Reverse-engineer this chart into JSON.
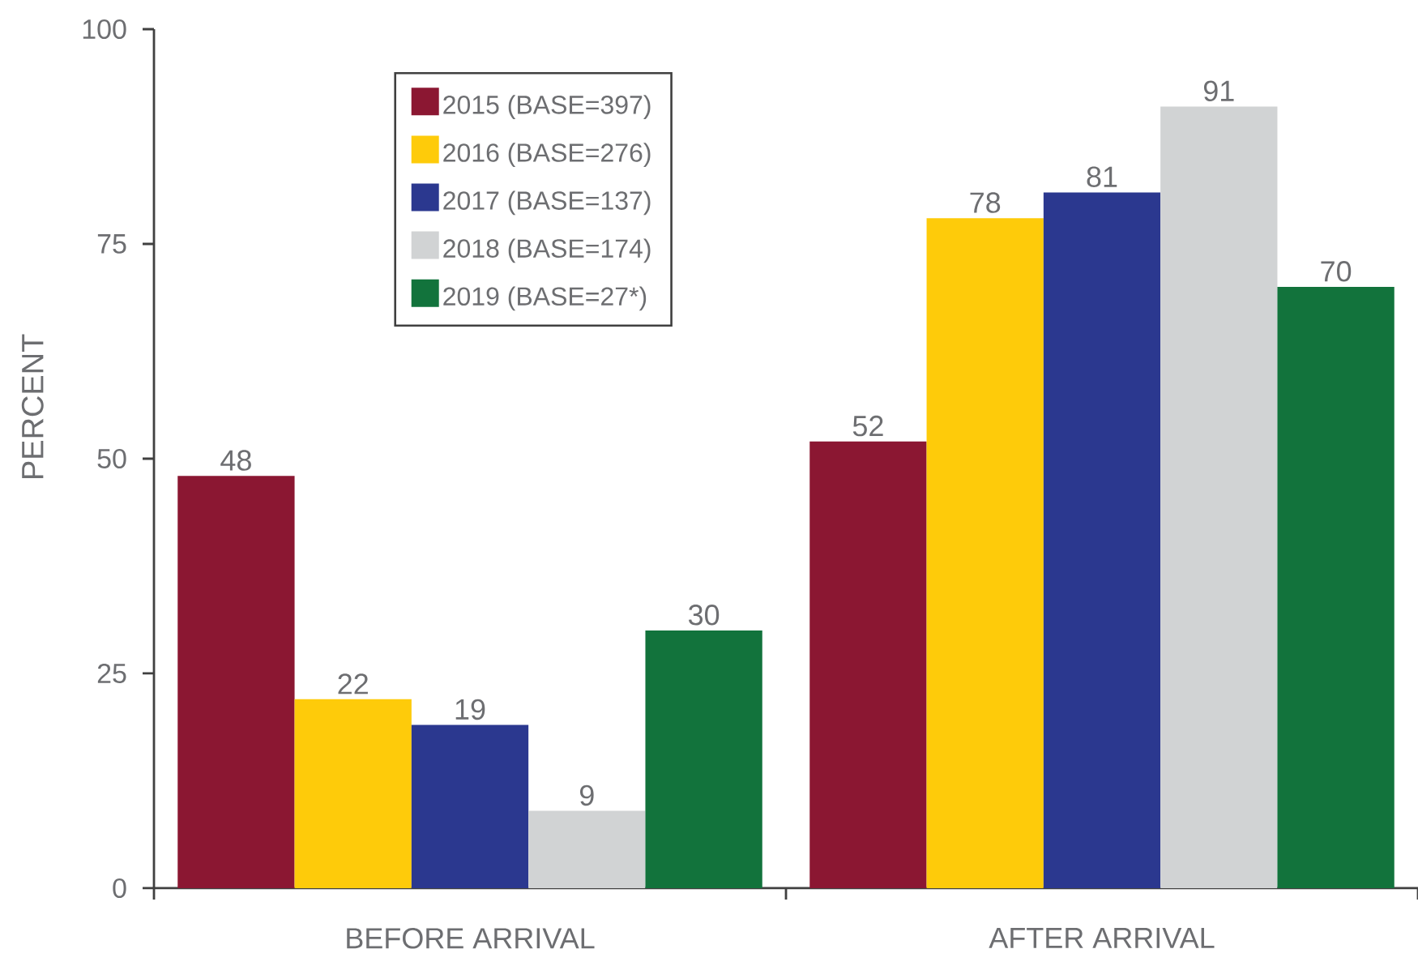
{
  "chart_data": {
    "type": "bar",
    "ylabel": "PERCENT",
    "categories": [
      "BEFORE ARRIVAL",
      "AFTER ARRIVAL"
    ],
    "series": [
      {
        "name": "2015 (BASE=397)",
        "color": "#8b1732",
        "values": [
          48,
          52
        ]
      },
      {
        "name": "2016 (BASE=276)",
        "color": "#fecb0a",
        "values": [
          22,
          78
        ]
      },
      {
        "name": "2017 (BASE=137)",
        "color": "#2b388f",
        "values": [
          19,
          81
        ]
      },
      {
        "name": "2018 (BASE=174)",
        "color": "#d1d3d4",
        "values": [
          9,
          91
        ]
      },
      {
        "name": "2019 (BASE=27*)",
        "color": "#12733c",
        "values": [
          30,
          70
        ]
      }
    ],
    "ylim": [
      0,
      100
    ],
    "yticks": [
      0,
      25,
      50,
      75,
      100
    ],
    "legend": "top left",
    "data_labels": true
  }
}
